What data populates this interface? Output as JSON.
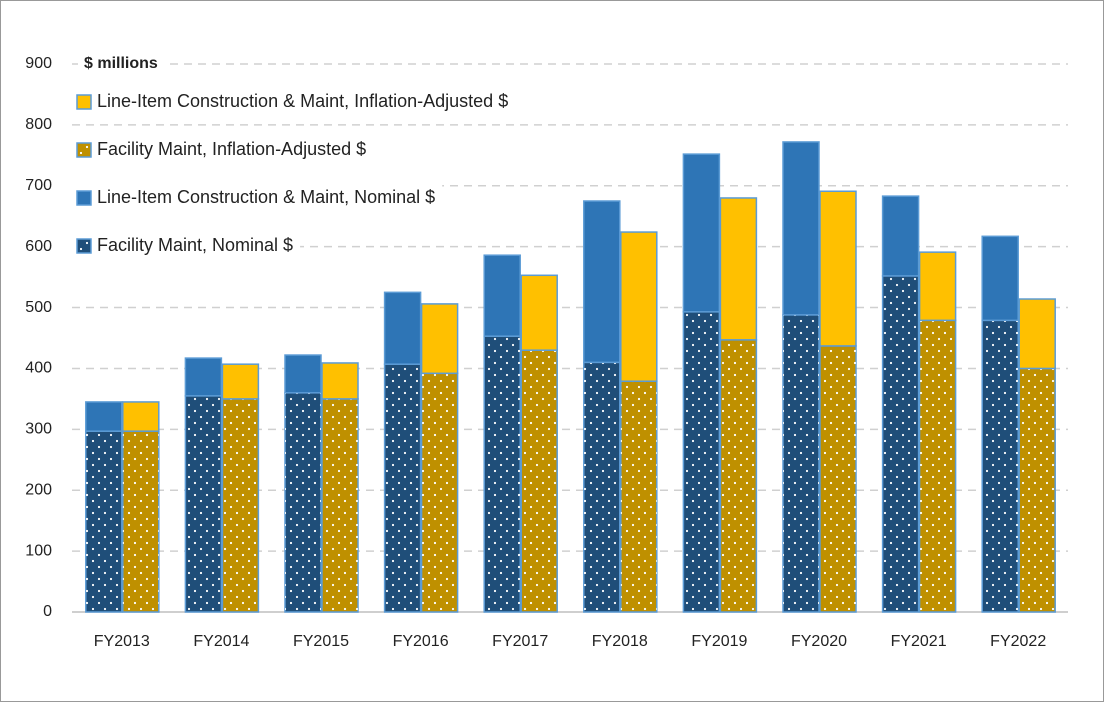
{
  "chart_data": {
    "type": "stacked_grouped_bar",
    "annotation": "$ millions",
    "categories": [
      "FY2013",
      "FY2014",
      "FY2015",
      "FY2016",
      "FY2017",
      "FY2018",
      "FY2019",
      "FY2020",
      "FY2021",
      "FY2022"
    ],
    "series": [
      {
        "name": "Facility Maint, Nominal $",
        "stack": "nominal",
        "color": "#1f4e79",
        "pattern": "dots",
        "values": [
          297,
          355,
          360,
          407,
          453,
          410,
          493,
          488,
          552,
          479
        ]
      },
      {
        "name": "Line-Item Construction & Maint, Nominal $",
        "stack": "nominal",
        "color": "#2e75b6",
        "pattern": "solid",
        "values": [
          48,
          62,
          62,
          118,
          133,
          265,
          259,
          284,
          131,
          138
        ]
      },
      {
        "name": "Facility Maint, Inflation-Adjusted $",
        "stack": "adjusted",
        "color": "#bf9000",
        "pattern": "dots",
        "values": [
          297,
          350,
          350,
          392,
          430,
          379,
          447,
          437,
          479,
          400
        ]
      },
      {
        "name": "Line-Item Construction & Maint, Inflation-Adjusted $",
        "stack": "adjusted",
        "color": "#ffc000",
        "pattern": "solid",
        "values": [
          48,
          57,
          59,
          114,
          123,
          245,
          233,
          254,
          112,
          114
        ]
      }
    ],
    "ylim": [
      0,
      900
    ],
    "yticks": [
      0,
      100,
      200,
      300,
      400,
      500,
      600,
      700,
      800,
      900
    ],
    "grid": true,
    "legend": "top-left"
  }
}
